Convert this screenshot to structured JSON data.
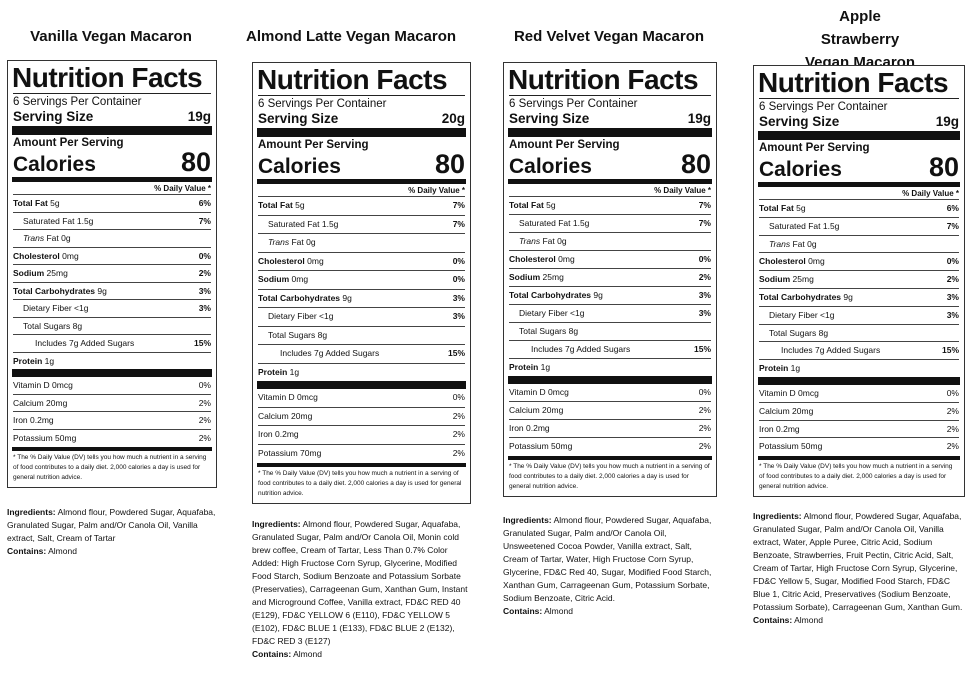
{
  "products": [
    {
      "title": "Vanilla Vegan Macaron",
      "nf_title": "Nutrition Facts",
      "servings": "6 Servings Per Container",
      "serving_size_label": "Serving Size",
      "serving_size": "19g",
      "amount_per_serving": "Amount Per Serving",
      "calories_label": "Calories",
      "calories": "80",
      "dv_header": "% Daily Value *",
      "total_fat": "Total Fat",
      "total_fat_amt": "5g",
      "total_fat_pct": "6%",
      "sat_fat": "Saturated Fat 1.5g",
      "sat_fat_pct": "7%",
      "trans_fat_italic": "Trans",
      "trans_fat_rest": "Fat 0g",
      "cholesterol": "Cholesterol",
      "cholesterol_amt": "0mg",
      "cholesterol_pct": "0%",
      "sodium": "Sodium",
      "sodium_amt": "25mg",
      "sodium_pct": "2%",
      "carbs": "Total Carbohydrates",
      "carbs_amt": "9g",
      "carbs_pct": "3%",
      "fiber": "Dietary Fiber <1g",
      "fiber_pct": "3%",
      "sugars": "Total Sugars 8g",
      "added_sugars": "Includes 7g Added Sugars",
      "added_sugars_pct": "15%",
      "protein": "Protein",
      "protein_amt": "1g",
      "vitd": "Vitamin D 0mcg",
      "vitd_pct": "0%",
      "calcium": "Calcium 20mg",
      "calcium_pct": "2%",
      "iron": "Iron 0.2mg",
      "iron_pct": "2%",
      "potassium": "Potassium 50mg",
      "potassium_pct": "2%",
      "footnote": "* The % Daily Value (DV) tells you how much a nutrient in a serving of food contributes to a daily diet. 2,000 calories a day is used for general nutrition advice.",
      "ingredients_label": "Ingredients:",
      "ingredients": "Almond flour, Powdered Sugar, Aquafaba, Granulated Sugar, Palm and/Or Canola Oil, Vanilla extract, Salt, Cream of Tartar",
      "contains_label": "Contains:",
      "contains": "Almond"
    },
    {
      "title": "Almond Latte Vegan Macaron",
      "nf_title": "Nutrition Facts",
      "servings": "6 Servings Per Container",
      "serving_size_label": "Serving Size",
      "serving_size": "20g",
      "amount_per_serving": "Amount Per Serving",
      "calories_label": "Calories",
      "calories": "80",
      "dv_header": "% Daily Value *",
      "total_fat": "Total Fat",
      "total_fat_amt": "5g",
      "total_fat_pct": "7%",
      "sat_fat": "Saturated Fat 1.5g",
      "sat_fat_pct": "7%",
      "trans_fat_italic": "Trans",
      "trans_fat_rest": "Fat 0g",
      "cholesterol": "Cholesterol",
      "cholesterol_amt": "0mg",
      "cholesterol_pct": "0%",
      "sodium": "Sodium",
      "sodium_amt": "0mg",
      "sodium_pct": "0%",
      "carbs": "Total Carbohydrates",
      "carbs_amt": "9g",
      "carbs_pct": "3%",
      "fiber": "Dietary Fiber <1g",
      "fiber_pct": "3%",
      "sugars": "Total Sugars 8g",
      "added_sugars": "Includes 7g Added Sugars",
      "added_sugars_pct": "15%",
      "protein": "Protein",
      "protein_amt": "1g",
      "vitd": "Vitamin D 0mcg",
      "vitd_pct": "0%",
      "calcium": "Calcium 20mg",
      "calcium_pct": "2%",
      "iron": "Iron 0.2mg",
      "iron_pct": "2%",
      "potassium": "Potassium 70mg",
      "potassium_pct": "2%",
      "footnote": "* The % Daily Value (DV) tells you how much a nutrient in a serving of food contributes to a daily diet. 2,000 calories a day is used for general nutrition advice.",
      "ingredients_label": "Ingredients:",
      "ingredients": "Almond flour, Powdered Sugar, Aquafaba, Granulated Sugar, Palm and/Or Canola Oil, Monin cold brew coffee, Cream of Tartar, Less Than 0.7% Color Added: High Fructose Corn Syrup, Glycerine, Modified Food Starch, Sodium Benzoate and Potassium Sorbate (Preservaties), Carrageenan Gum, Xanthan Gum, Instant and Microground Coffee, Vanilla extract, FD&C RED 40 (E129), FD&C YELLOW 6 (E110), FD&C YELLOW 5 (E102), FD&C BLUE 1 (E133), FD&C BLUE 2 (E132), FD&C RED 3 (E127)",
      "contains_label": "Contains:",
      "contains": "Almond"
    },
    {
      "title": "Red Velvet Vegan Macaron",
      "nf_title": "Nutrition Facts",
      "servings": "6 Servings Per Container",
      "serving_size_label": "Serving Size",
      "serving_size": "19g",
      "amount_per_serving": "Amount Per Serving",
      "calories_label": "Calories",
      "calories": "80",
      "dv_header": "% Daily Value *",
      "total_fat": "Total Fat",
      "total_fat_amt": "5g",
      "total_fat_pct": "7%",
      "sat_fat": "Saturated Fat 1.5g",
      "sat_fat_pct": "7%",
      "trans_fat_italic": "Trans",
      "trans_fat_rest": "Fat 0g",
      "cholesterol": "Cholesterol",
      "cholesterol_amt": "0mg",
      "cholesterol_pct": "0%",
      "sodium": "Sodium",
      "sodium_amt": "25mg",
      "sodium_pct": "2%",
      "carbs": "Total Carbohydrates",
      "carbs_amt": "9g",
      "carbs_pct": "3%",
      "fiber": "Dietary Fiber <1g",
      "fiber_pct": "3%",
      "sugars": "Total Sugars 8g",
      "added_sugars": "Includes 7g Added Sugars",
      "added_sugars_pct": "15%",
      "protein": "Protein",
      "protein_amt": "1g",
      "vitd": "Vitamin D 0mcg",
      "vitd_pct": "0%",
      "calcium": "Calcium 20mg",
      "calcium_pct": "2%",
      "iron": "Iron 0.2mg",
      "iron_pct": "2%",
      "potassium": "Potassium 50mg",
      "potassium_pct": "2%",
      "footnote": "* The % Daily Value (DV) tells you how much a nutrient in a serving of food contributes to a daily diet. 2,000 calories a day is used for general nutrition advice.",
      "ingredients_label": "Ingredients:",
      "ingredients": "Almond flour, Powdered Sugar, Aquafaba, Granulated Sugar, Palm and/Or Canola Oil, Unsweetened Cocoa Powder, Vanilla extract, Salt, Cream of Tartar, Water, High Fructose Corn Syrup, Glycerine, FD&C Red 40, Sugar, Modified Food Starch, Xanthan Gum, Carrageenan Gum, Potassium Sorbate, Sodium Benzoate, Citric Acid.",
      "contains_label": "Contains:",
      "contains": "Almond"
    },
    {
      "title": "Apple Strawberry Vegan Macaron",
      "nf_title": "Nutrition Facts",
      "servings": "6 Servings Per Container",
      "serving_size_label": "Serving Size",
      "serving_size": "19g",
      "amount_per_serving": "Amount Per Serving",
      "calories_label": "Calories",
      "calories": "80",
      "dv_header": "% Daily Value *",
      "total_fat": "Total Fat",
      "total_fat_amt": "5g",
      "total_fat_pct": "6%",
      "sat_fat": "Saturated Fat 1.5g",
      "sat_fat_pct": "7%",
      "trans_fat_italic": "Trans",
      "trans_fat_rest": "Fat 0g",
      "cholesterol": "Cholesterol",
      "cholesterol_amt": "0mg",
      "cholesterol_pct": "0%",
      "sodium": "Sodium",
      "sodium_amt": "25mg",
      "sodium_pct": "2%",
      "carbs": "Total Carbohydrates",
      "carbs_amt": "9g",
      "carbs_pct": "3%",
      "fiber": "Dietary Fiber <1g",
      "fiber_pct": "3%",
      "sugars": "Total Sugars 8g",
      "added_sugars": "Includes 7g Added Sugars",
      "added_sugars_pct": "15%",
      "protein": "Protein",
      "protein_amt": "1g",
      "vitd": "Vitamin D 0mcg",
      "vitd_pct": "0%",
      "calcium": "Calcium 20mg",
      "calcium_pct": "2%",
      "iron": "Iron 0.2mg",
      "iron_pct": "2%",
      "potassium": "Potassium 50mg",
      "potassium_pct": "2%",
      "footnote": "* The % Daily Value (DV) tells you how much a nutrient in a serving of food contributes to a daily diet. 2,000 calories a day is used for general nutrition advice.",
      "ingredients_label": "Ingredients:",
      "ingredients": "Almond flour, Powdered Sugar, Aquafaba, Granulated Sugar, Palm and/Or Canola Oil, Vanilla extract, Water, Apple Puree, Citric Acid, Sodium Benzoate, Strawberries, Fruit Pectin, Citric Acid, Salt, Cream of Tartar, High Fructose Corn Syrup, Glycerine, FD&C Yellow 5, Sugar, Modified Food Starch, FD&C Blue 1, Citric Acid, Preservatives (Sodium Benzoate, Potassium Sorbate), Carrageenan Gum, Xanthan Gum.",
      "contains_label": "Contains:",
      "contains": "Almond"
    }
  ]
}
